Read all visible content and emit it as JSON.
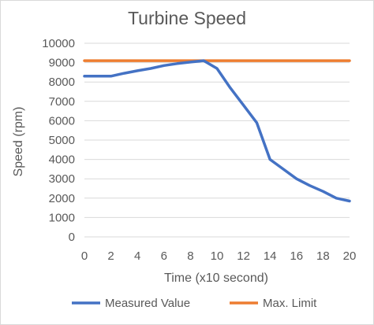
{
  "chart_data": {
    "type": "line",
    "title": "Turbine Speed",
    "xlabel": "Time (x10 second)",
    "ylabel": "Speed (rpm)",
    "x": [
      0,
      1,
      2,
      3,
      4,
      5,
      6,
      7,
      8,
      9,
      10,
      11,
      12,
      13,
      14,
      15,
      16,
      17,
      18,
      19,
      20
    ],
    "x_ticks": [
      "0",
      "2",
      "4",
      "6",
      "8",
      "10",
      "12",
      "14",
      "16",
      "18",
      "20"
    ],
    "y_ticks": [
      "0",
      "1000",
      "2000",
      "3000",
      "4000",
      "5000",
      "6000",
      "7000",
      "8000",
      "9000",
      "10000"
    ],
    "xlim": [
      0,
      20
    ],
    "ylim": [
      0,
      10000
    ],
    "grid": "horizontal",
    "legend_position": "bottom",
    "series": [
      {
        "name": "Measured Value",
        "color": "#4472C4",
        "values": [
          8300,
          8300,
          8300,
          8450,
          8580,
          8700,
          8850,
          8950,
          9030,
          9100,
          8700,
          7700,
          6800,
          5900,
          4000,
          3500,
          3000,
          2650,
          2350,
          2000,
          1850
        ]
      },
      {
        "name": "Max. Limit",
        "color": "#ED7D31",
        "values": [
          9100,
          9100,
          9100,
          9100,
          9100,
          9100,
          9100,
          9100,
          9100,
          9100,
          9100,
          9100,
          9100,
          9100,
          9100,
          9100,
          9100,
          9100,
          9100,
          9100,
          9100
        ]
      }
    ]
  }
}
